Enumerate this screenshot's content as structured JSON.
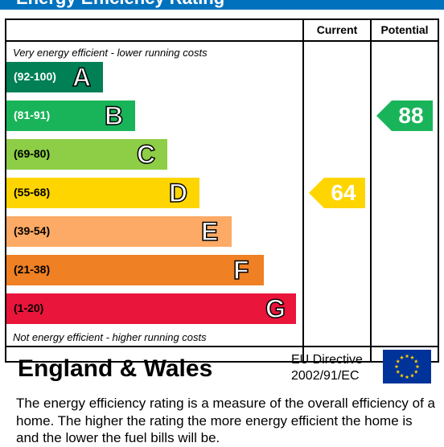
{
  "title": "Energy Efficiency Rating",
  "columns": {
    "current": "Current",
    "potential": "Potential"
  },
  "notes": {
    "top": "Very energy efficient - lower running costs",
    "bottom": "Not energy efficient - higher running costs"
  },
  "chart_data": {
    "type": "bar",
    "title": "Energy Efficiency Rating",
    "categories": [
      "A",
      "B",
      "C",
      "D",
      "E",
      "F",
      "G"
    ],
    "bands": [
      {
        "letter": "A",
        "range": "(92-100)",
        "color": "#008054",
        "range_text_color": "#ffffff"
      },
      {
        "letter": "B",
        "range": "(81-91)",
        "color": "#19b459",
        "range_text_color": "#ffffff"
      },
      {
        "letter": "C",
        "range": "(69-80)",
        "color": "#8dce46",
        "range_text_color": "#000000"
      },
      {
        "letter": "D",
        "range": "(55-68)",
        "color": "#ffd500",
        "range_text_color": "#000000"
      },
      {
        "letter": "E",
        "range": "(39-54)",
        "color": "#fcaa65",
        "range_text_color": "#000000"
      },
      {
        "letter": "F",
        "range": "(21-38)",
        "color": "#ef8023",
        "range_text_color": "#000000"
      },
      {
        "letter": "G",
        "range": "(1-20)",
        "color": "#e9153b",
        "range_text_color": "#000000"
      }
    ],
    "current": {
      "value": 64,
      "band": "D",
      "color": "#ffd500"
    },
    "potential": {
      "value": 88,
      "band": "B",
      "color": "#19b459"
    }
  },
  "footer": {
    "region": "England & Wales",
    "directive_line1": "EU Directive",
    "directive_line2": "2002/91/EC",
    "flag_icon": "eu-flag-icon",
    "flag_colors": {
      "background": "#003399",
      "stars": "#ffcc00"
    }
  },
  "description": "The energy efficiency rating is a measure of the overall efficiency of a home.  The higher the rating the more energy efficient the home is and the lower the fuel bills will be."
}
